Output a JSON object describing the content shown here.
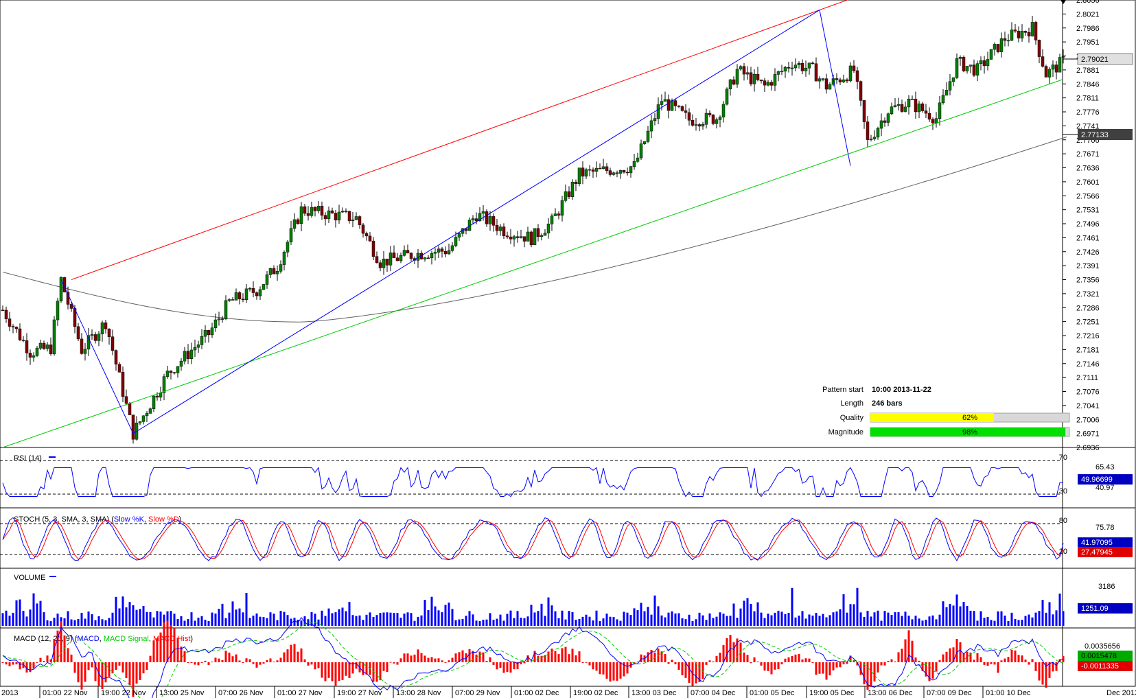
{
  "price_axis": {
    "ticks": [
      "2.8056",
      "2.8021",
      "2.7986",
      "2.7951",
      "2.7916",
      "2.7881",
      "2.7846",
      "2.7811",
      "2.7776",
      "2.7741",
      "2.7706",
      "2.7671",
      "2.7636",
      "2.7601",
      "2.7566",
      "2.7531",
      "2.7496",
      "2.7461",
      "2.7426",
      "2.7391",
      "2.7356",
      "2.7321",
      "2.7286",
      "2.7251",
      "2.7216",
      "2.7181",
      "2.7146",
      "2.7111",
      "2.7076",
      "2.7041",
      "2.7006",
      "2.6971",
      "2.6936"
    ],
    "current_price": "2.79021",
    "ma_value": "2.77133"
  },
  "time_axis": {
    "labels": [
      "2013",
      "01:00 22 Nov",
      "19:00 22 Nov",
      "13:00 25 Nov",
      "07:00 26 Nov",
      "01:00 27 Nov",
      "19:00 27 Nov",
      "13:00 28 Nov",
      "07:00 29 Nov",
      "01:00 02 Dec",
      "19:00 02 Dec",
      "13:00 03 Dec",
      "07:00 04 Dec",
      "01:00 05 Dec",
      "19:00 05 Dec",
      "13:00 06 Dec",
      "07:00 09 Dec",
      "01:00 10 Dec",
      "Dec 2013"
    ]
  },
  "pattern_info": {
    "start_label": "Pattern start",
    "start_value": "10:00 2013-11-22",
    "length_label": "Length",
    "length_value": "246 bars",
    "quality_label": "Quality",
    "quality_value": "62%",
    "quality_fraction": 0.62,
    "magnitude_label": "Magnitude",
    "magnitude_value": "98%",
    "magnitude_fraction": 0.98
  },
  "rsi": {
    "title": "RSI (14)",
    "levels": [
      "70",
      "30"
    ],
    "axis_ticks": [
      "65.43",
      "40.97"
    ],
    "value": "49.96699"
  },
  "stoch": {
    "title_prefix": "STOCH (5, 3, SMA, 3, SMA) (",
    "k_label": "Slow %K",
    "sep": ", ",
    "d_label": "Slow %D",
    "title_suffix": ")",
    "levels": [
      "80",
      "20"
    ],
    "axis_ticks": [
      "75.78"
    ],
    "k_value": "41.97095",
    "d_value": "27.47945"
  },
  "volume": {
    "title": "VOLUME",
    "axis_ticks": [
      "3186"
    ],
    "value": "1251.09"
  },
  "macd": {
    "title_prefix": "MACD (12, 26, 9) (",
    "macd_label": "MACD",
    "sep": ", ",
    "signal_label": "MACD Signal",
    "hist_label": "MACD Hist",
    "title_suffix": ")",
    "axis_ticks": [
      "0.0035656"
    ],
    "macd_value": "0.0015478",
    "signal_value": "-0.0011335"
  },
  "colors": {
    "candle_up": "#008000",
    "candle_down": "#800000",
    "resistance": "#ff0000",
    "support": "#00cc00",
    "zigzag": "#0000ff",
    "moving_average": "#606060",
    "rsi_line": "#0000ff",
    "stoch_k": "#0000ff",
    "stoch_d": "#ff0000",
    "volume_bar": "#0000ff",
    "macd_line": "#0000ff",
    "macd_signal": "#00cc00",
    "macd_hist": "#ff0000",
    "quality_bar": "#ffff00",
    "magnitude_bar": "#00e000"
  },
  "chart_data": {
    "type": "candlestick",
    "symbol_scale": "price",
    "ylim": [
      2.6936,
      2.8056
    ],
    "pattern": {
      "type": "ascending channel",
      "start": "10:00 2013-11-22",
      "length_bars": 246,
      "quality_pct": 62,
      "magnitude_pct": 98
    },
    "lines": {
      "resistance": [
        [
          20,
          2.7356
        ],
        [
          238,
          2.8031
        ]
      ],
      "support": [
        [
          0,
          2.6936
        ],
        [
          285,
          2.7786
        ]
      ],
      "zigzag": [
        [
          17,
          2.7356
        ],
        [
          38,
          2.6971
        ],
        [
          238,
          2.8031
        ],
        [
          247,
          2.7641
        ]
      ],
      "ma_last": 2.77133
    },
    "last_price": 2.79021,
    "indicators": {
      "rsi": {
        "period": 14,
        "last": 49.96699,
        "levels": [
          70,
          30
        ]
      },
      "stoch": {
        "params": "5,3,SMA,3,SMA",
        "k_last": 41.97095,
        "d_last": 27.47945,
        "levels": [
          80,
          20
        ]
      },
      "volume": {
        "last": 1251.09
      },
      "macd": {
        "params": "12,26,9",
        "macd_last": 0.0015478,
        "signal_last": -0.0011335
      }
    }
  }
}
